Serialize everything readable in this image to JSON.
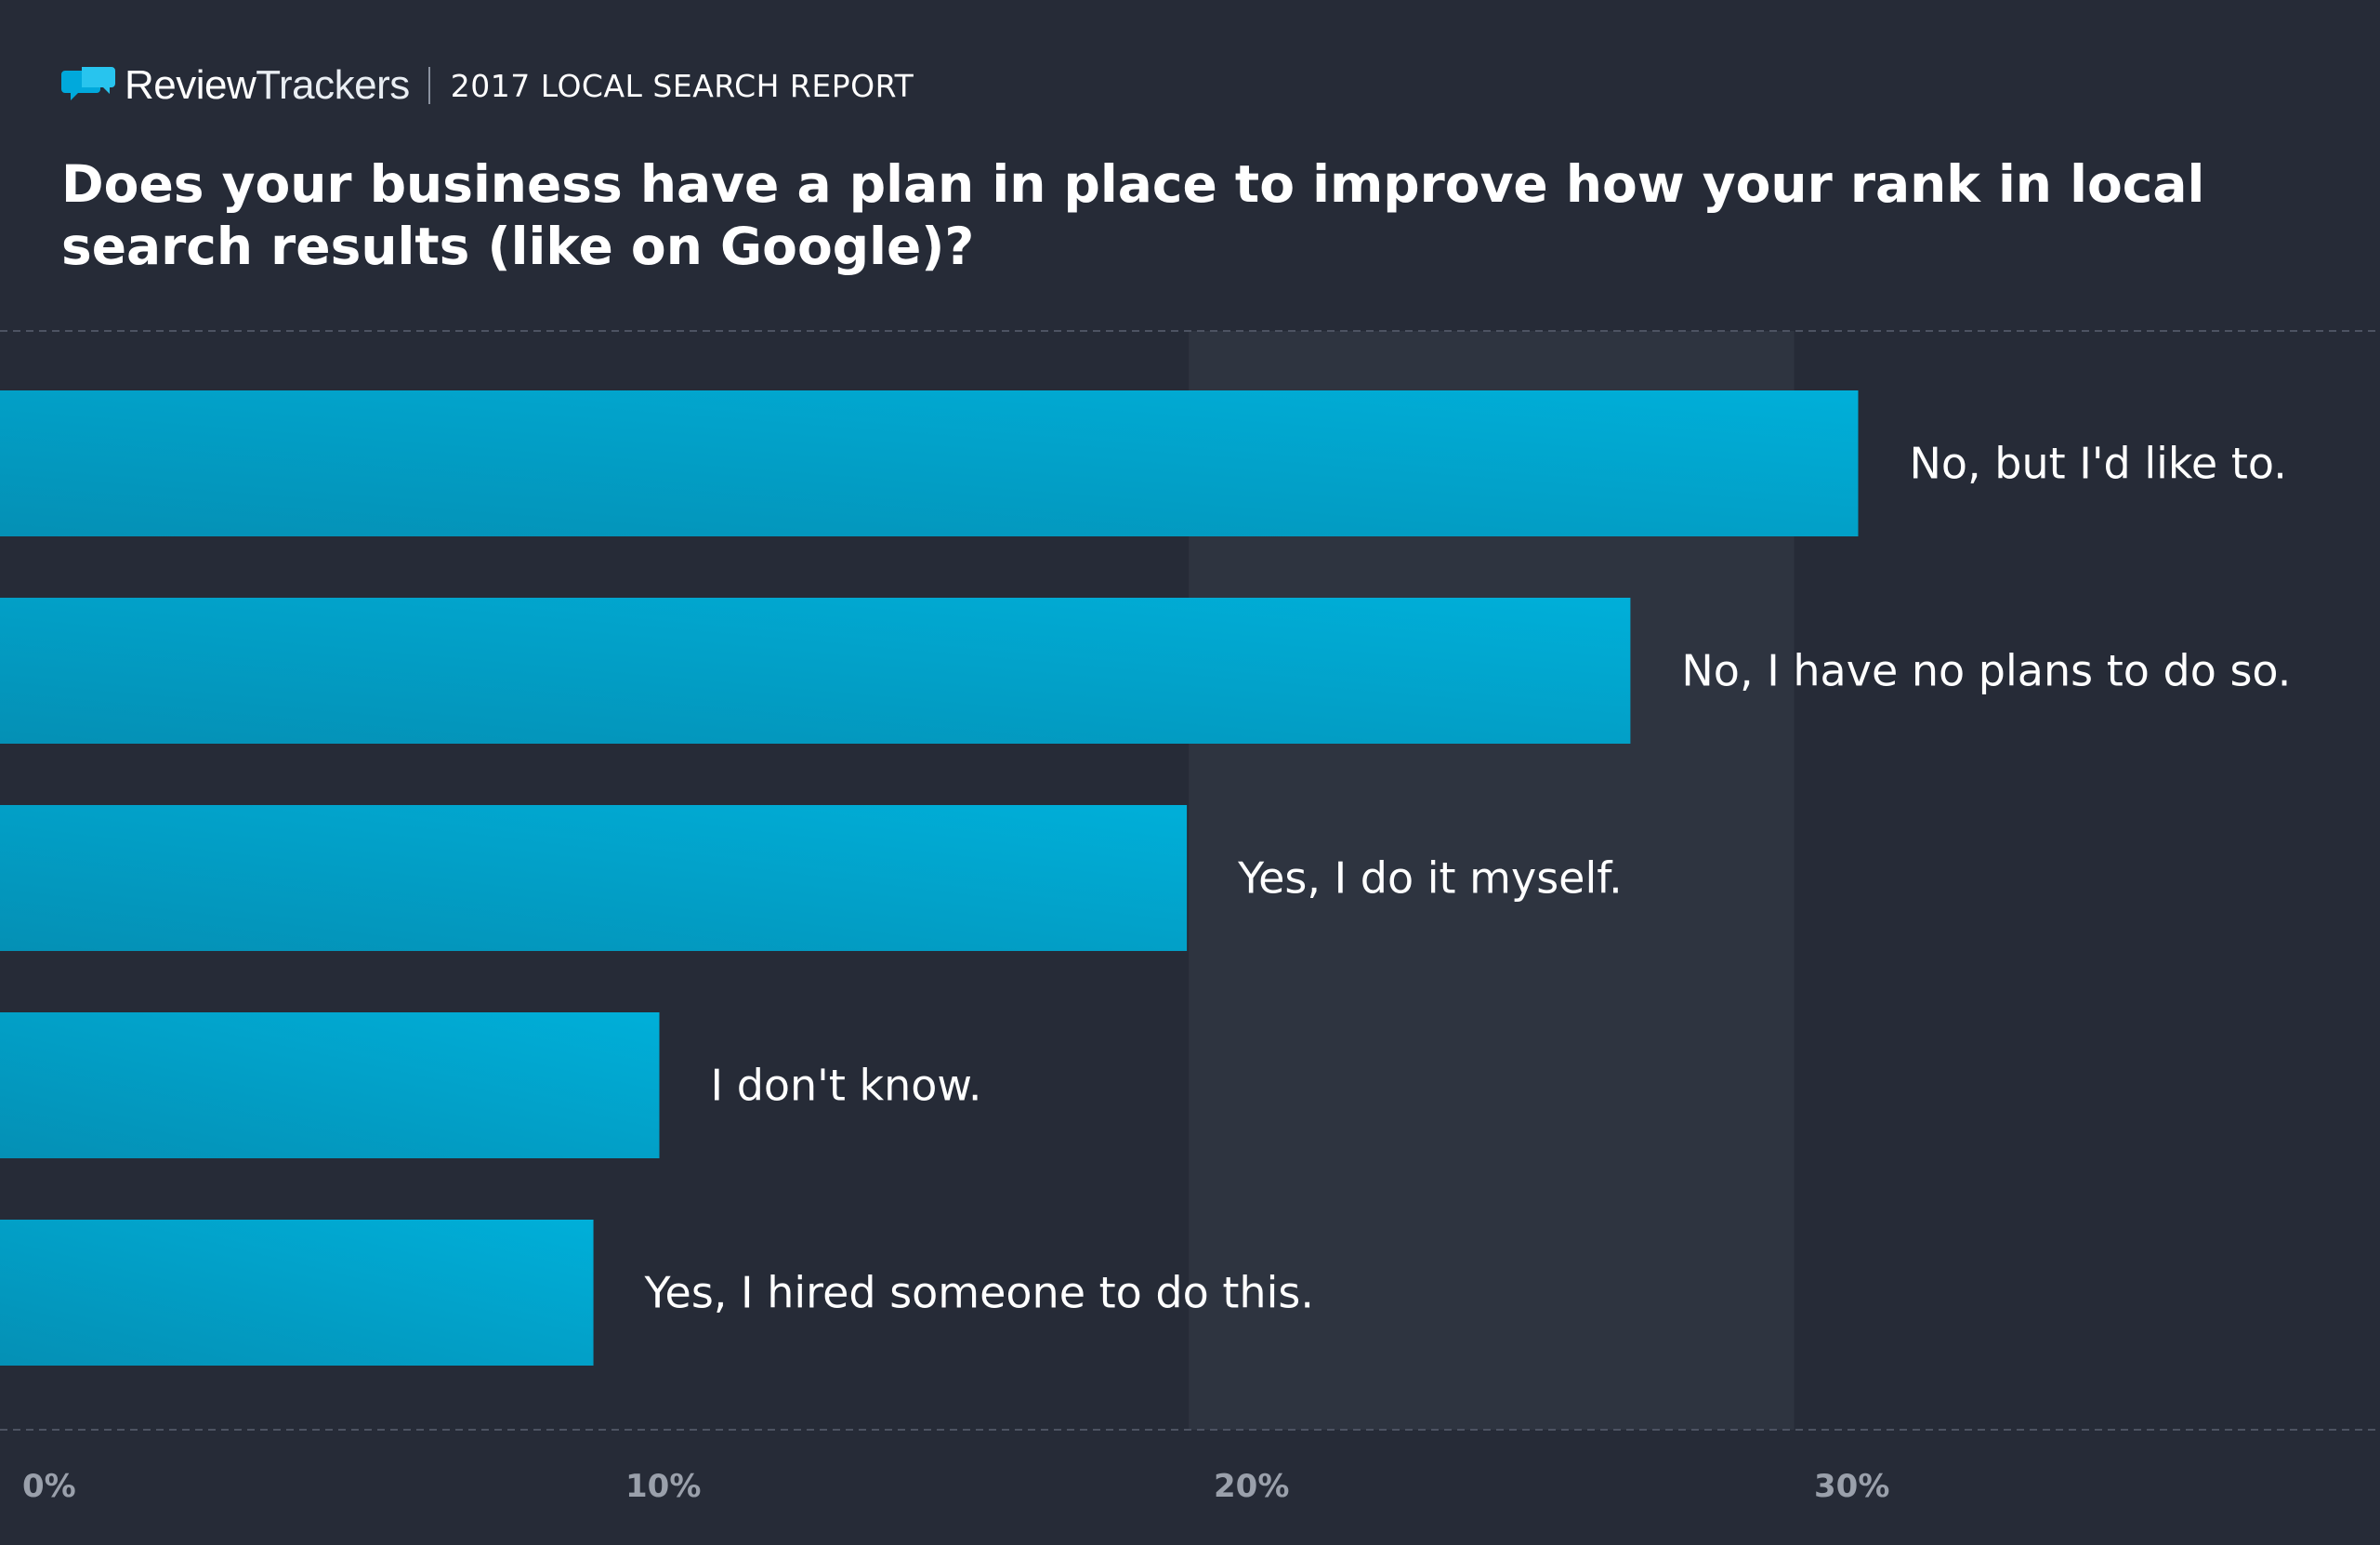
{
  "brand": {
    "name_part1": "Review",
    "name_part2": "Trackers",
    "report_title": "2017 LOCAL SEARCH REPORT"
  },
  "colors": {
    "background": "#262b37",
    "band": "#2e3440",
    "bar_start": "#0490b5",
    "bar_end": "#00afd9",
    "grid_line": "#4d5362",
    "tick_text": "#9aa0ab",
    "brand_blue": "#00a9dc"
  },
  "chart_data": {
    "type": "bar",
    "orientation": "horizontal",
    "title": "Does your business have a plan in place to improve how your rank in local search results (like on Google)?",
    "categories": [
      "No, but I'd like to.",
      "No, I have no plans to do so.",
      "Yes, I do it myself.",
      "I don't know.",
      "Yes, I hired someone to do this."
    ],
    "values": [
      31,
      27.2,
      19.8,
      11,
      9.9
    ],
    "unit": "%",
    "xlim": [
      0,
      40
    ],
    "ticks": [
      0,
      10,
      20,
      30
    ],
    "tick_labels": [
      "0%",
      "10%",
      "20%",
      "30%"
    ],
    "xlabel": "",
    "ylabel": "",
    "grid": true,
    "legend": "none"
  }
}
